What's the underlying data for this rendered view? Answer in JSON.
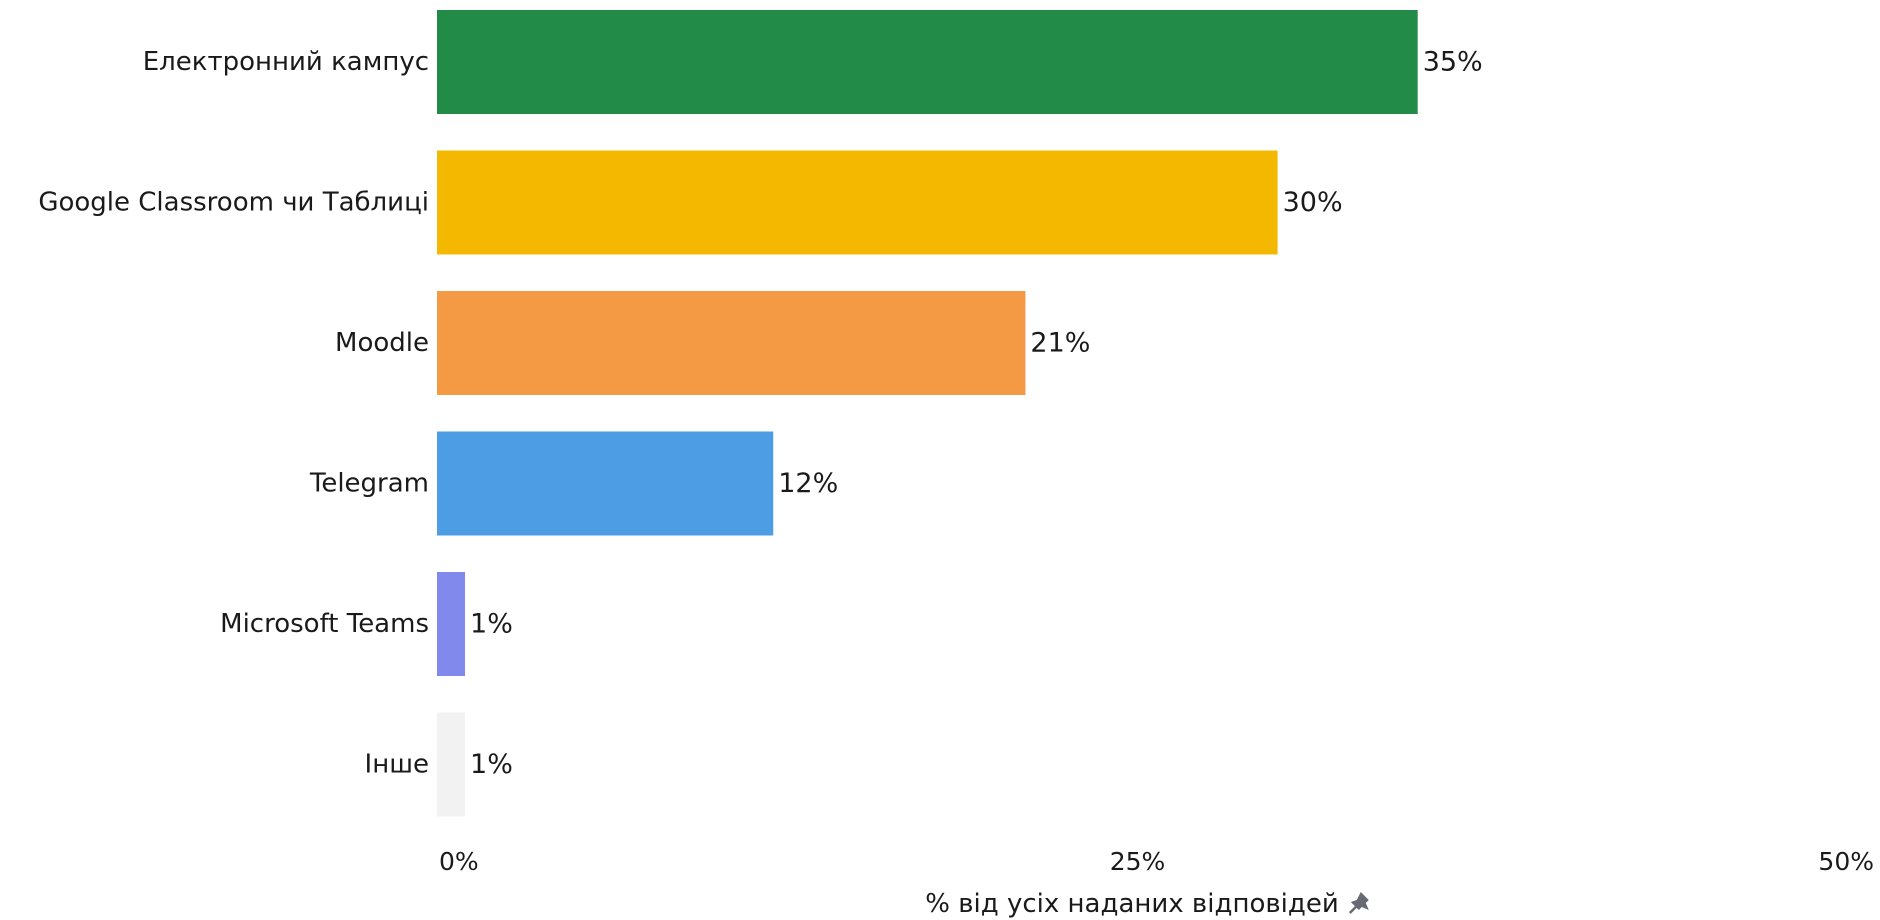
{
  "chart_data": {
    "type": "bar",
    "orientation": "horizontal",
    "categories": [
      "Електронний кампус",
      "Google Classroom чи Таблиці",
      "Moodle",
      "Telegram",
      "Microsoft Teams",
      "Інше"
    ],
    "values": [
      35,
      30,
      21,
      12,
      1,
      1
    ],
    "value_labels": [
      "35%",
      "30%",
      "21%",
      "12%",
      "1%",
      "1%"
    ],
    "colors": [
      "#228b47",
      "#f5b800",
      "#f49a45",
      "#4d9de4",
      "#8289ec",
      "#f2f2f2"
    ],
    "xlim": [
      0,
      50
    ],
    "x_ticks": [
      0,
      25,
      50
    ],
    "x_tick_labels": [
      "0%",
      "25%",
      "50%"
    ],
    "xlabel": "% від усіх наданих відповідей",
    "xlabel_icon": "pin-icon",
    "grid": false,
    "legend": "none"
  }
}
